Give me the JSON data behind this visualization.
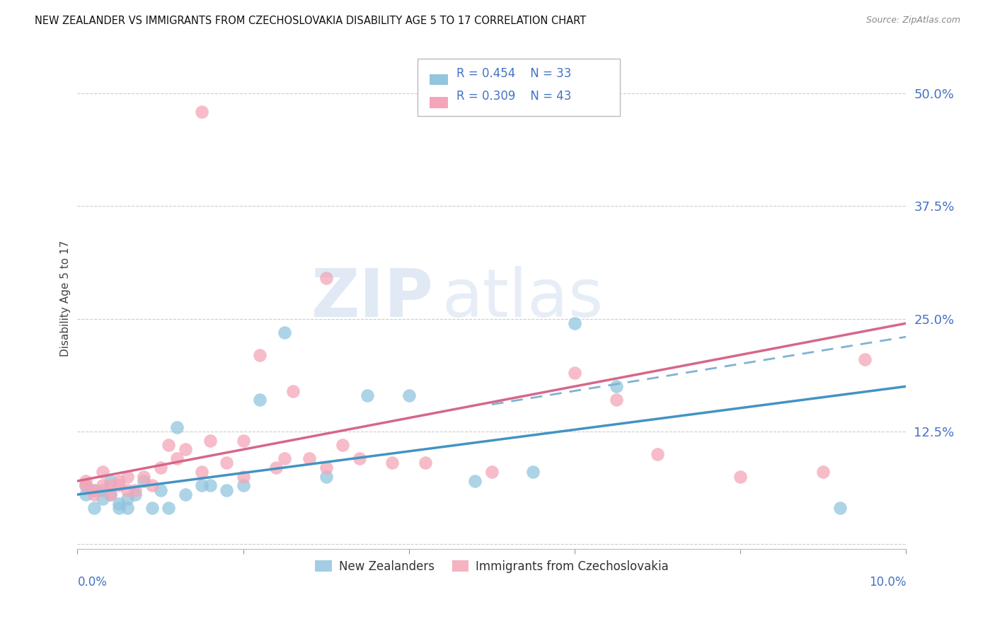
{
  "title": "NEW ZEALANDER VS IMMIGRANTS FROM CZECHOSLOVAKIA DISABILITY AGE 5 TO 17 CORRELATION CHART",
  "source": "Source: ZipAtlas.com",
  "ylabel": "Disability Age 5 to 17",
  "ytick_values": [
    0.0,
    0.125,
    0.25,
    0.375,
    0.5
  ],
  "ytick_labels": [
    "",
    "12.5%",
    "25.0%",
    "37.5%",
    "50.0%"
  ],
  "xlim": [
    0.0,
    0.1
  ],
  "ylim": [
    -0.005,
    0.55
  ],
  "color_nz": "#92c5de",
  "color_imm": "#f4a6b8",
  "color_nz_line": "#4393c3",
  "color_imm_line": "#d6678a",
  "color_dashed": "#aaaaaa",
  "color_ytick": "#4472c4",
  "color_xtick": "#4472c4",
  "legend_r1": "R = 0.454",
  "legend_n1": "N = 33",
  "legend_r2": "R = 0.309",
  "legend_n2": "N = 43",
  "nz_line_x0": 0.0,
  "nz_line_y0": 0.055,
  "nz_line_x1": 0.1,
  "nz_line_y1": 0.175,
  "imm_line_x0": 0.0,
  "imm_line_y0": 0.07,
  "imm_line_x1": 0.1,
  "imm_line_y1": 0.245,
  "dash_line_x0": 0.05,
  "dash_line_y0": 0.155,
  "dash_line_x1": 0.1,
  "dash_line_y1": 0.23,
  "nz_x": [
    0.001,
    0.001,
    0.002,
    0.002,
    0.003,
    0.003,
    0.004,
    0.004,
    0.005,
    0.005,
    0.006,
    0.006,
    0.007,
    0.008,
    0.009,
    0.01,
    0.011,
    0.012,
    0.013,
    0.015,
    0.016,
    0.018,
    0.02,
    0.022,
    0.025,
    0.03,
    0.035,
    0.04,
    0.048,
    0.055,
    0.06,
    0.065,
    0.092
  ],
  "nz_y": [
    0.065,
    0.055,
    0.06,
    0.04,
    0.05,
    0.06,
    0.055,
    0.07,
    0.04,
    0.045,
    0.04,
    0.05,
    0.055,
    0.07,
    0.04,
    0.06,
    0.04,
    0.13,
    0.055,
    0.065,
    0.065,
    0.06,
    0.065,
    0.16,
    0.235,
    0.075,
    0.165,
    0.165,
    0.07,
    0.08,
    0.245,
    0.175,
    0.04
  ],
  "imm_x": [
    0.001,
    0.001,
    0.002,
    0.002,
    0.003,
    0.003,
    0.004,
    0.004,
    0.005,
    0.005,
    0.006,
    0.006,
    0.007,
    0.008,
    0.009,
    0.01,
    0.011,
    0.012,
    0.013,
    0.015,
    0.016,
    0.018,
    0.02,
    0.022,
    0.024,
    0.026,
    0.028,
    0.03,
    0.032,
    0.034,
    0.038,
    0.042,
    0.05,
    0.06,
    0.065,
    0.07,
    0.08,
    0.09,
    0.095,
    0.015,
    0.02,
    0.025,
    0.03
  ],
  "imm_y": [
    0.065,
    0.07,
    0.06,
    0.055,
    0.08,
    0.065,
    0.065,
    0.055,
    0.07,
    0.065,
    0.075,
    0.06,
    0.06,
    0.075,
    0.065,
    0.085,
    0.11,
    0.095,
    0.105,
    0.48,
    0.115,
    0.09,
    0.075,
    0.21,
    0.085,
    0.17,
    0.095,
    0.085,
    0.11,
    0.095,
    0.09,
    0.09,
    0.08,
    0.19,
    0.16,
    0.1,
    0.075,
    0.08,
    0.205,
    0.08,
    0.115,
    0.095,
    0.295
  ]
}
